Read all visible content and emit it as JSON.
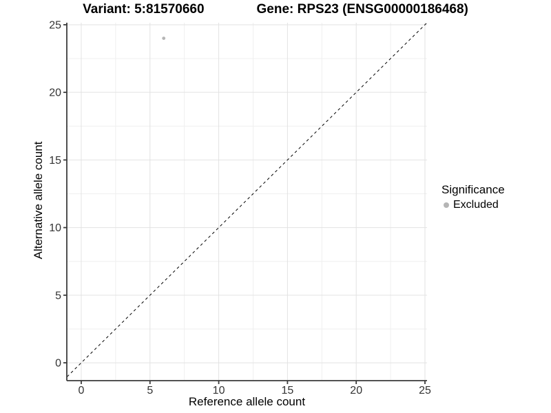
{
  "title": {
    "variant": "Variant: 5:81570660",
    "gene": "Gene: RPS23 (ENSG00000186468)"
  },
  "axes": {
    "x_label": "Reference allele count",
    "y_label": "Alternative allele count"
  },
  "legend": {
    "title": "Significance",
    "items": [
      {
        "label": "Excluded",
        "color": "#b5b5b5"
      }
    ]
  },
  "colors": {
    "axis_line": "#3a3a3a",
    "tick_label": "#333333",
    "grid_major": "#e2e2e2",
    "grid_minor": "#efefef",
    "reference_line": "#000000",
    "point": "#b5b5b5",
    "background": "#ffffff"
  },
  "chart_data": {
    "type": "scatter",
    "title": "Variant: 5:81570660   Gene: RPS23 (ENSG00000186468)",
    "xlabel": "Reference allele count",
    "ylabel": "Alternative allele count",
    "xlim": [
      -1.05,
      25.15
    ],
    "ylim": [
      -1.32,
      25.15
    ],
    "x_ticks": [
      0,
      5,
      10,
      15,
      20,
      25
    ],
    "y_ticks": [
      0,
      5,
      10,
      15,
      20,
      25
    ],
    "minor_grid_offset": 2.5,
    "grid": true,
    "legend_position": "right",
    "series": [
      {
        "name": "Excluded",
        "color": "#b5b5b5",
        "points": [
          {
            "x": 6,
            "y": 24
          }
        ]
      }
    ],
    "reference_line": {
      "type": "identity",
      "slope": 1,
      "intercept": 0,
      "style": "dashed",
      "color": "#000000"
    }
  }
}
